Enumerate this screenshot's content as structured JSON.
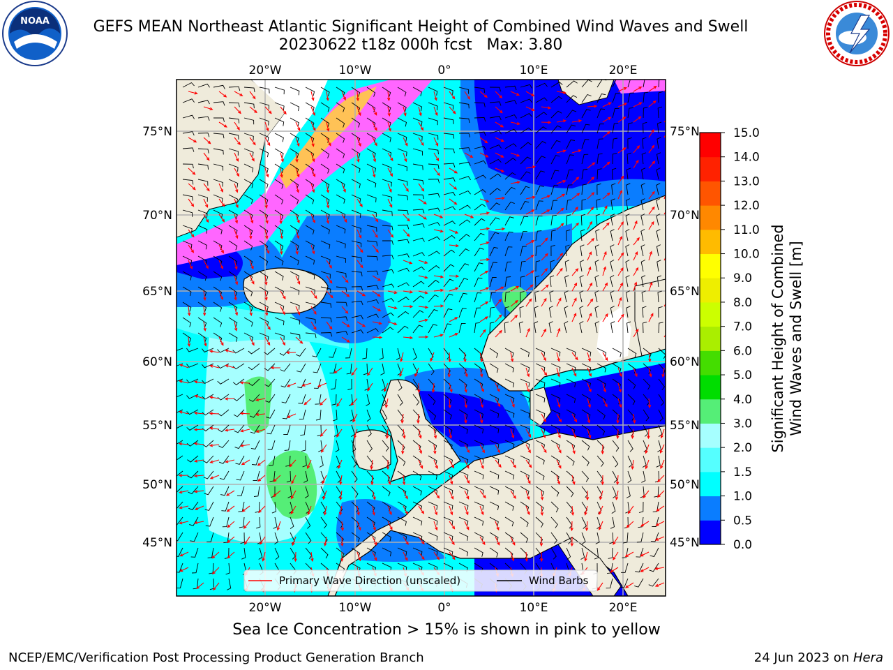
{
  "title": {
    "line1": "GEFS MEAN Northeast Atlantic Significant Height of Combined Wind Waves and Swell",
    "line2": "20230622 t18z 000h fcst   Max: 3.80"
  },
  "logos": {
    "left": "noaa-logo",
    "right": "nws-logo"
  },
  "map": {
    "lon_labels": [
      "20°W",
      "10°W",
      "0°",
      "10°E",
      "20°E"
    ],
    "lat_labels": [
      "75°N",
      "70°N",
      "65°N",
      "60°N",
      "55°N",
      "50°N",
      "45°N"
    ],
    "colors": {
      "land": "#efebdb",
      "ice": "#ff66ff",
      "deep": "#0000ff",
      "mid": "#0a7dff",
      "light": "#00ffff",
      "pale": "#a6ffff",
      "green": "#55ee77"
    }
  },
  "legend": {
    "wave_label": "Primary Wave Direction (unscaled)",
    "wind_label": "Wind Barbs",
    "wave_color": "#ff0000",
    "wind_color": "#000000"
  },
  "colorbar": {
    "title_line1": "Significant Height of Combined",
    "title_line2": "Wind Waves and Swell [m]",
    "ticks": [
      "0.0",
      "0.5",
      "1.0",
      "1.5",
      "2.0",
      "3.0",
      "4.0",
      "5.0",
      "6.0",
      "7.0",
      "8.0",
      "9.0",
      "10.0",
      "11.0",
      "12.0",
      "13.0",
      "14.0",
      "15.0"
    ],
    "colors": [
      "#0000ff",
      "#0a7dff",
      "#00ffff",
      "#55ffff",
      "#a6ffff",
      "#55ee77",
      "#00dd00",
      "#44dd00",
      "#aaee00",
      "#ccff00",
      "#eeee00",
      "#ffff00",
      "#ffbb00",
      "#ff8800",
      "#ff5500",
      "#ff2200",
      "#ff0000"
    ]
  },
  "ice_note": "Sea Ice Concentration > 15% is shown in pink to yellow",
  "footer": {
    "left": "NCEP/EMC/Verification Post Processing Product Generation Branch",
    "date": "24 Jun 2023 on ",
    "host": "Hera"
  }
}
